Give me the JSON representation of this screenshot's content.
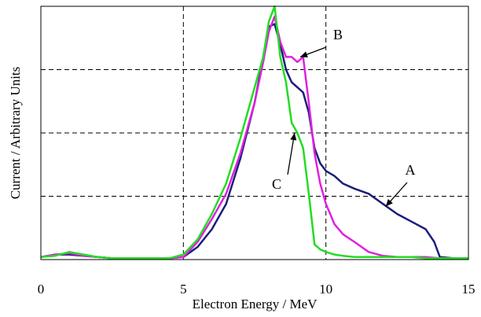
{
  "chart_data": {
    "type": "line",
    "title": "",
    "xlabel": "Electron Energy / MeV",
    "ylabel": "Current / Arbitrary Units",
    "xlim": [
      0,
      15
    ],
    "ylim": [
      0,
      1
    ],
    "xticks": [
      "0",
      "5",
      "10",
      "15"
    ],
    "yticks_labeled": false,
    "grid": "dashed, major",
    "legend": "none (direct annotations)",
    "series": [
      {
        "name": "A",
        "color": "#1a1f7a",
        "x": [
          0,
          0.5,
          1,
          1.5,
          2,
          2.5,
          3,
          3.5,
          4,
          4.5,
          5,
          5.5,
          6,
          6.5,
          7,
          7.5,
          7.8,
          8.0,
          8.2,
          8.4,
          8.6,
          8.8,
          9.0,
          9.2,
          9.4,
          9.6,
          9.8,
          10.0,
          10.3,
          10.6,
          11.0,
          11.5,
          12.0,
          12.5,
          13.0,
          13.5,
          13.8,
          14.0,
          14.5,
          15
        ],
        "y": [
          0.01,
          0.02,
          0.02,
          0.015,
          0.01,
          0.005,
          0.005,
          0.005,
          0.005,
          0.005,
          0.01,
          0.05,
          0.12,
          0.22,
          0.4,
          0.62,
          0.8,
          0.92,
          0.93,
          0.85,
          0.75,
          0.7,
          0.68,
          0.66,
          0.58,
          0.44,
          0.38,
          0.35,
          0.33,
          0.3,
          0.28,
          0.26,
          0.22,
          0.18,
          0.15,
          0.12,
          0.07,
          0.01,
          0.005,
          0.005
        ]
      },
      {
        "name": "B",
        "color": "#e020e0",
        "x": [
          0,
          0.5,
          1,
          1.5,
          2,
          2.5,
          3,
          3.5,
          4,
          4.5,
          5,
          5.5,
          6,
          6.5,
          7,
          7.5,
          7.8,
          8.0,
          8.2,
          8.4,
          8.6,
          8.8,
          9.0,
          9.2,
          9.4,
          9.6,
          9.8,
          10.0,
          10.3,
          10.6,
          11.0,
          11.5,
          12.0,
          12.5,
          13.0,
          13.5,
          14.0,
          14.5,
          15
        ],
        "y": [
          0.01,
          0.02,
          0.025,
          0.015,
          0.01,
          0.005,
          0.005,
          0.005,
          0.005,
          0.005,
          0.01,
          0.07,
          0.16,
          0.26,
          0.42,
          0.62,
          0.78,
          0.9,
          0.96,
          0.86,
          0.8,
          0.8,
          0.78,
          0.8,
          0.62,
          0.42,
          0.3,
          0.22,
          0.14,
          0.1,
          0.07,
          0.03,
          0.015,
          0.01,
          0.01,
          0.01,
          0.005,
          0.005,
          0.005
        ]
      },
      {
        "name": "C",
        "color": "#22dd22",
        "x": [
          0,
          0.5,
          1,
          1.5,
          2,
          2.5,
          3,
          3.5,
          4,
          4.5,
          5,
          5.5,
          6,
          6.5,
          7,
          7.5,
          7.8,
          8.0,
          8.2,
          8.4,
          8.6,
          8.8,
          9.0,
          9.2,
          9.4,
          9.6,
          9.8,
          10.0,
          10.3,
          10.6,
          11.0,
          11.5,
          12.0,
          12.5,
          13.0,
          13.5,
          14.0,
          14.5,
          15
        ],
        "y": [
          0.01,
          0.015,
          0.03,
          0.02,
          0.01,
          0.005,
          0.005,
          0.005,
          0.005,
          0.005,
          0.02,
          0.08,
          0.18,
          0.3,
          0.48,
          0.68,
          0.8,
          0.94,
          1.0,
          0.8,
          0.7,
          0.54,
          0.5,
          0.44,
          0.26,
          0.06,
          0.04,
          0.03,
          0.02,
          0.015,
          0.01,
          0.01,
          0.01,
          0.01,
          0.01,
          0.005,
          0.005,
          0.005,
          0.005
        ]
      }
    ],
    "annotations": [
      {
        "label": "A",
        "target_series": "A",
        "target_x": 12.1,
        "target_y": 0.21
      },
      {
        "label": "B",
        "target_series": "B",
        "target_x": 9.1,
        "target_y": 0.8
      },
      {
        "label": "C",
        "target_series": "C",
        "target_x": 8.9,
        "target_y": 0.5
      }
    ]
  }
}
